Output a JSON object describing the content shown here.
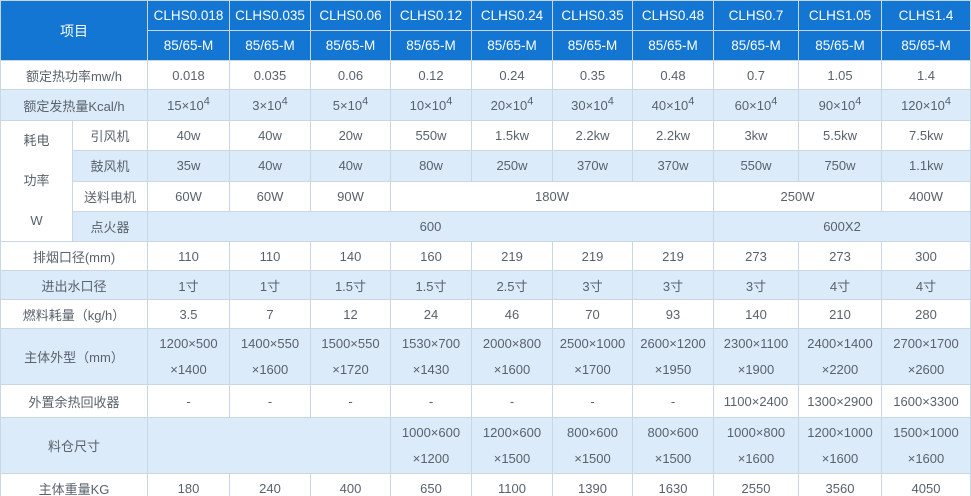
{
  "colors": {
    "header_bg": "#1276d2",
    "alt_row_bg": "#dcebf9",
    "border": "#c9d7e5",
    "text": "#59626c",
    "header_text": "#ffffff"
  },
  "table": {
    "corner": "项目",
    "models": [
      "CLHS0.018",
      "CLHS0.035",
      "CLHS0.06",
      "CLHS0.12",
      "CLHS0.24",
      "CLHS0.35",
      "CLHS0.48",
      "CLHS0.7",
      "CLHS1.05",
      "CLHS1.4"
    ],
    "subheaders": [
      "85/65-M",
      "85/65-M",
      "85/65-M",
      "85/65-M",
      "85/65-M",
      "85/65-M",
      "85/65-M",
      "85/65-M",
      "85/65-M",
      "85/65-M"
    ],
    "power_group_label": "耗电\n功率\nW",
    "rows": [
      {
        "id": "rated-thermal-power",
        "label": "额定热功率mw/h",
        "cells": [
          "0.018",
          "0.035",
          "0.06",
          "0.12",
          "0.24",
          "0.35",
          "0.48",
          "0.7",
          "1.05",
          "1.4"
        ]
      },
      {
        "id": "rated-heat-output",
        "label": "额定发热量Kcal/h",
        "cells": [
          {
            "t": "15×10",
            "sup": "4"
          },
          {
            "t": "3×10",
            "sup": "4"
          },
          {
            "t": "5×10",
            "sup": "4"
          },
          {
            "t": "10×10",
            "sup": "4"
          },
          {
            "t": "20×10",
            "sup": "4"
          },
          {
            "t": "30×10",
            "sup": "4"
          },
          {
            "t": "40×10",
            "sup": "4"
          },
          {
            "t": "60×10",
            "sup": "4"
          },
          {
            "t": "90×10",
            "sup": "4"
          },
          {
            "t": "120×10",
            "sup": "4"
          }
        ]
      },
      {
        "id": "induced-draft-fan",
        "group_start": true,
        "sublabel": "引风机",
        "cells": [
          "40w",
          "40w",
          "20w",
          "550w",
          "1.5kw",
          "2.2kw",
          "2.2kw",
          "3kw",
          "5.5kw",
          "7.5kw"
        ]
      },
      {
        "id": "blower-fan",
        "sublabel": "鼓风机",
        "cells": [
          "35w",
          "40w",
          "40w",
          "80w",
          "250w",
          "370w",
          "370w",
          "550w",
          "750w",
          "1.1kw"
        ]
      },
      {
        "id": "feeding-motor",
        "sublabel": "送料电机",
        "cells": [
          "60W",
          "60W",
          "90W",
          {
            "t": "180W",
            "colspan": 4
          },
          {
            "t": "250W",
            "colspan": 2
          },
          "400W"
        ]
      },
      {
        "id": "igniter",
        "sublabel": "点火器",
        "cells": [
          {
            "t": "600",
            "colspan": 7
          },
          {
            "t": "600X2",
            "colspan": 3
          }
        ]
      },
      {
        "id": "smoke-outlet-diameter",
        "label": "排烟口径(mm)",
        "cells": [
          "110",
          "110",
          "140",
          "160",
          "219",
          "219",
          "219",
          "273",
          "273",
          "300"
        ]
      },
      {
        "id": "water-inlet-outlet-diameter",
        "label": "进出水口径",
        "cells": [
          "1寸",
          "1寸",
          "1.5寸",
          "1.5寸",
          "2.5寸",
          "3寸",
          "3寸",
          "3寸",
          "4寸",
          "4寸"
        ]
      },
      {
        "id": "fuel-consumption",
        "label": "燃料耗量（kg/h）",
        "cells": [
          "3.5",
          "7",
          "12",
          "24",
          "46",
          "70",
          "93",
          "140",
          "210",
          "280"
        ]
      },
      {
        "id": "body-dimensions",
        "label": "主体外型（mm）",
        "cells": [
          "1200×500\n×1400",
          "1400×550\n×1600",
          "1500×550\n×1720",
          "1530×700\n×1430",
          "2000×800\n×1600",
          "2500×1000\n×1700",
          "2600×1200\n×1950",
          "2300×1100\n×1900",
          "2400×1400\n×2200",
          "2700×1700\n×2600"
        ]
      },
      {
        "id": "external-heat-recovery",
        "label": "外置余热回收器",
        "cells": [
          "-",
          "-",
          "-",
          "-",
          "-",
          "-",
          "-",
          "1100×2400",
          "1300×2900",
          "1600×3300"
        ]
      },
      {
        "id": "hopper-dimensions",
        "label": "料仓尺寸",
        "cells": [
          {
            "t": "",
            "colspan": 3
          },
          "1000×600\n×1200",
          "1200×600\n×1500",
          "800×600\n×1500",
          "800×600\n×1500",
          "1000×800\n×1600",
          "1200×1000\n×1600",
          "1500×1000\n×1600"
        ]
      },
      {
        "id": "body-weight",
        "label": "主体重量KG",
        "cells": [
          "180",
          "240",
          "400",
          "650",
          "1100",
          "1390",
          "1630",
          "2550",
          "3560",
          "4050"
        ]
      }
    ]
  }
}
